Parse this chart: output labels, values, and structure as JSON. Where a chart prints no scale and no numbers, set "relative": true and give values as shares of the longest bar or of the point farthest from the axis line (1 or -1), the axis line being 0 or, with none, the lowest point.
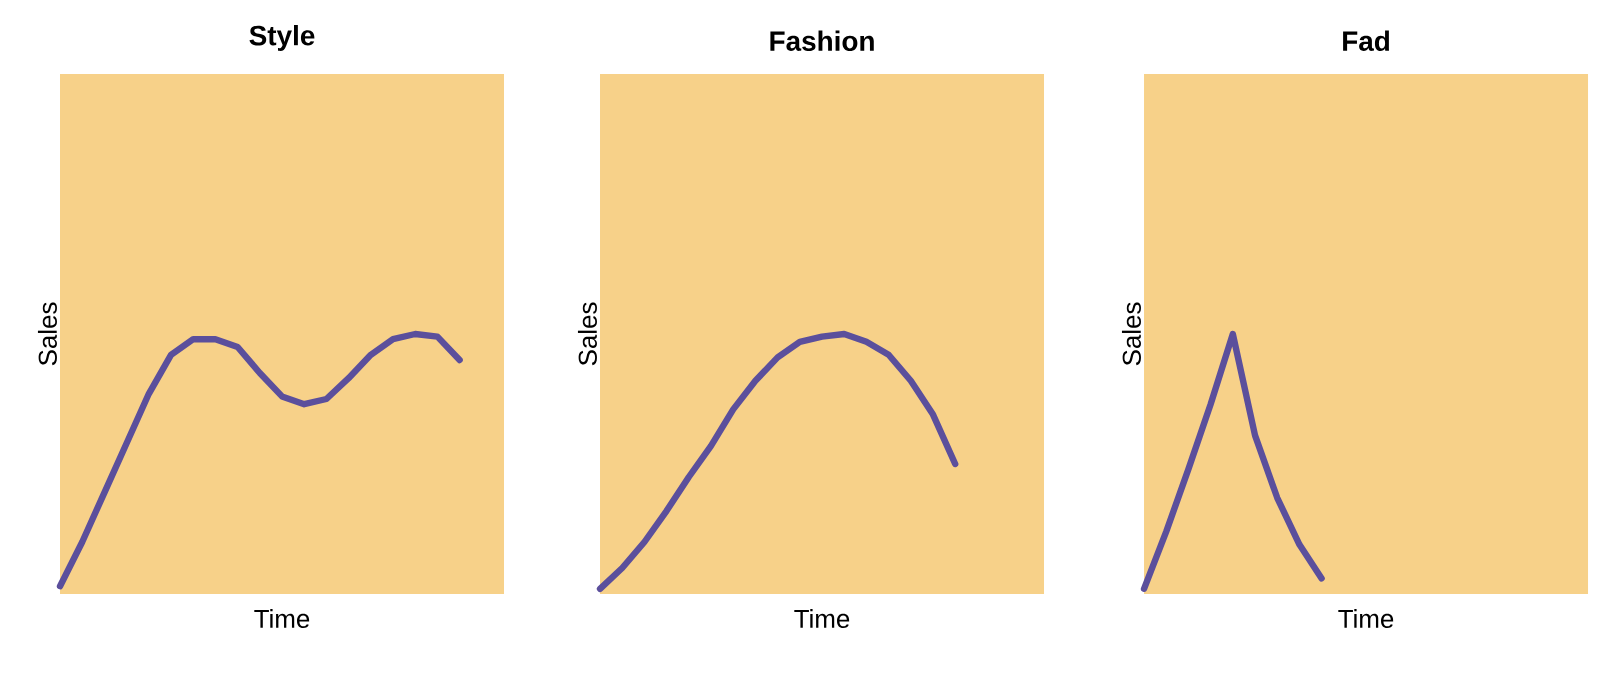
{
  "chart_data": [
    {
      "type": "line",
      "title": "Style",
      "xlabel": "Time",
      "ylabel": "Sales",
      "relative": true,
      "categories": [
        null,
        null,
        null,
        null,
        null,
        null,
        null,
        null,
        null,
        null,
        null,
        null,
        null,
        null,
        null,
        null,
        null,
        null,
        null,
        null,
        null
      ],
      "series": [
        {
          "color": "#5b4f9c",
          "values": [
            0.03,
            0.2,
            0.39,
            0.58,
            0.77,
            0.92,
            0.98,
            0.98,
            0.95,
            0.85,
            0.76,
            0.73,
            0.75,
            0.83,
            0.92,
            0.98,
            1.0,
            0.99,
            0.9,
            null,
            null
          ]
        }
      ]
    },
    {
      "type": "line",
      "title": "Fashion",
      "xlabel": "Time",
      "ylabel": "Sales",
      "relative": true,
      "categories": [
        null,
        null,
        null,
        null,
        null,
        null,
        null,
        null,
        null,
        null,
        null,
        null,
        null,
        null,
        null,
        null,
        null,
        null,
        null,
        null,
        null
      ],
      "series": [
        {
          "color": "#5b4f9c",
          "values": [
            0.02,
            0.1,
            0.2,
            0.32,
            0.45,
            0.57,
            0.71,
            0.82,
            0.91,
            0.97,
            0.99,
            1.0,
            0.97,
            0.92,
            0.82,
            0.69,
            0.5,
            null,
            null,
            null,
            null
          ]
        }
      ]
    },
    {
      "type": "line",
      "title": "Fad",
      "xlabel": "Time",
      "ylabel": "Sales",
      "relative": true,
      "categories": [
        null,
        null,
        null,
        null,
        null,
        null,
        null,
        null,
        null,
        null,
        null,
        null,
        null,
        null,
        null,
        null,
        null,
        null,
        null,
        null,
        null
      ],
      "series": [
        {
          "color": "#5b4f9c",
          "values": [
            0.02,
            0.24,
            0.48,
            0.73,
            1.0,
            0.61,
            0.37,
            0.19,
            0.06,
            null,
            null,
            null,
            null,
            null,
            null,
            null,
            null,
            null,
            null,
            null,
            null
          ]
        }
      ]
    }
  ]
}
